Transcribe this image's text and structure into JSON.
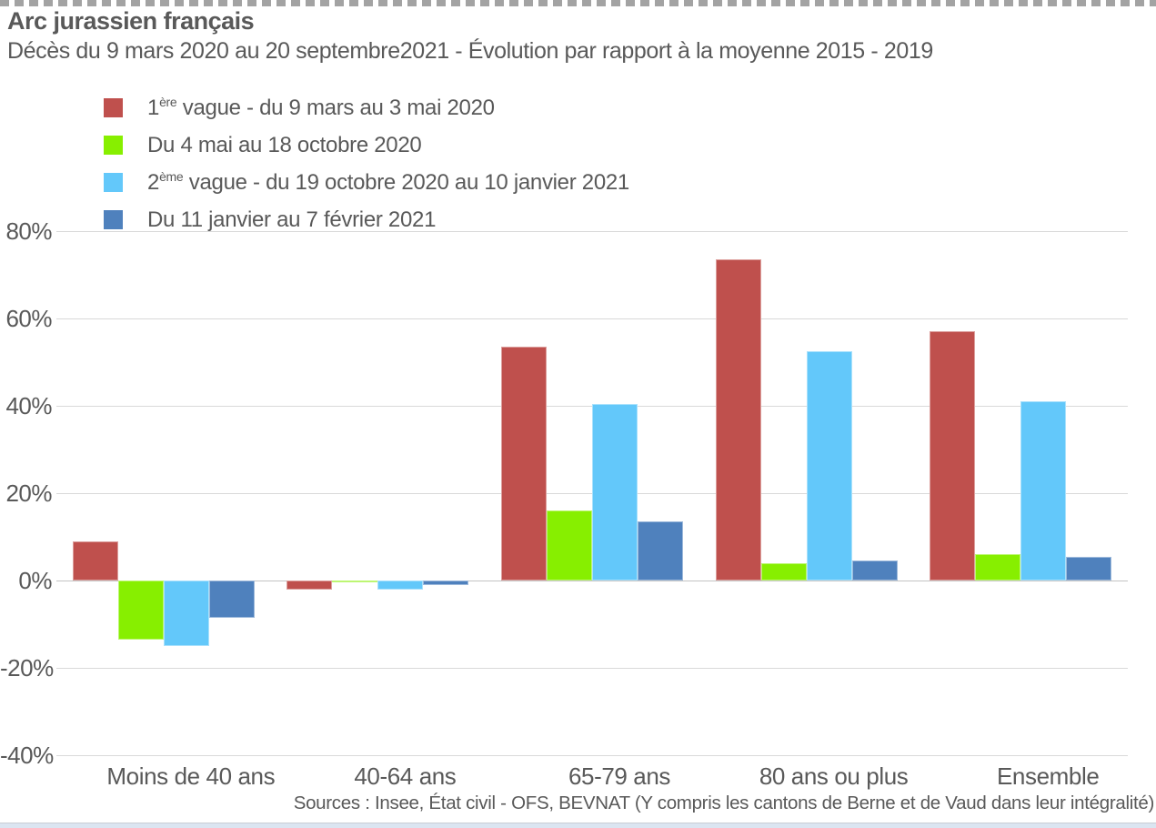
{
  "header": {
    "title": "Arc jurassien français",
    "subtitle": "Décès du 9 mars 2020 au 20 septembre2021 - Évolution par rapport à la moyenne 2015 - 2019"
  },
  "chart_data": {
    "type": "bar",
    "title": "Arc jurassien français",
    "subtitle": "Décès du 9 mars 2020 au 20 septembre2021 - Évolution par rapport à la moyenne 2015 - 2019",
    "categories": [
      "Moins de 40 ans",
      "40-64 ans",
      "65-79 ans",
      "80 ans ou plus",
      "Ensemble"
    ],
    "series": [
      {
        "name": "1ère vague - du 9 mars au 3 mai 2020",
        "label_pre": "1",
        "label_sup": "ère",
        "label_post": " vague - du 9 mars au 3 mai 2020",
        "color": "#bf504d",
        "values": [
          9,
          -2,
          53.5,
          73.5,
          57
        ]
      },
      {
        "name": "Du 4 mai au 18 octobre 2020",
        "label_pre": "Du 4 mai au 18 octobre 2020",
        "label_sup": "",
        "label_post": "",
        "color": "#87ef00",
        "values": [
          -13.5,
          -0.5,
          16,
          4,
          6
        ]
      },
      {
        "name": "2ème vague - du 19 octobre 2020 au 10 janvier 2021",
        "label_pre": "2",
        "label_sup": "ème",
        "label_post": " vague - du 19 octobre 2020 au 10 janvier 2021",
        "color": "#63c8fa",
        "values": [
          -15,
          -2,
          40.5,
          52.5,
          41
        ]
      },
      {
        "name": "Du 11 janvier au 7 février 2021",
        "label_pre": "Du 11 janvier au 7 février 2021",
        "label_sup": "",
        "label_post": "",
        "color": "#4f81bd",
        "values": [
          -8.5,
          -1,
          13.5,
          4.5,
          5.5
        ]
      }
    ],
    "ylim": [
      -40,
      80
    ],
    "yticks": [
      {
        "v": 80,
        "label": "80%"
      },
      {
        "v": 60,
        "label": "60%"
      },
      {
        "v": 40,
        "label": "40%"
      },
      {
        "v": 20,
        "label": "20%"
      },
      {
        "v": 0,
        "label": "0%"
      },
      {
        "v": -20,
        "label": "-20%"
      },
      {
        "v": -40,
        "label": "-40%"
      }
    ],
    "grid": true,
    "legend_position": "top-left",
    "unit": "%"
  },
  "footer": {
    "source": "Sources : Insee, État civil - OFS, BEVNAT (Y compris les cantons de Berne et de Vaud dans leur intégralité)"
  },
  "colors": {
    "text": "#595959",
    "gridline": "#d9d9d9",
    "zero_line": "#c3c3c3",
    "dash_border": "#a3a3a3",
    "bottom_strip": "#dbe5f1",
    "series_red": "#bf504d",
    "series_green": "#87ef00",
    "series_lightblue": "#63c8fa",
    "series_steelblue": "#4f81bd"
  }
}
